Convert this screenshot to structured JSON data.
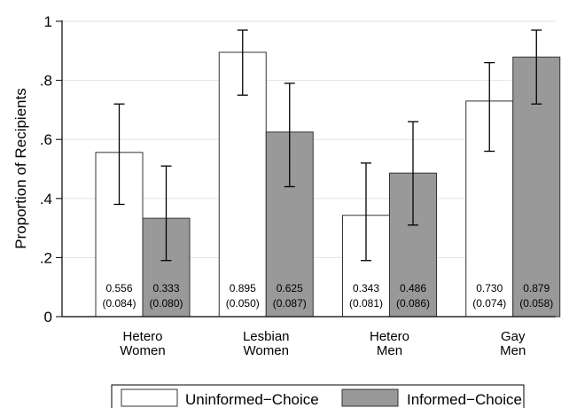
{
  "chart_data": {
    "type": "bar",
    "title": "",
    "xlabel": "",
    "ylabel": "Proportion of Recipients",
    "ylim": [
      0,
      1
    ],
    "yticks": [
      {
        "value": 0,
        "label": "0"
      },
      {
        "value": 0.2,
        "label": ".2"
      },
      {
        "value": 0.4,
        "label": ".4"
      },
      {
        "value": 0.6,
        "label": ".6"
      },
      {
        "value": 0.8,
        "label": ".8"
      },
      {
        "value": 1,
        "label": "1"
      }
    ],
    "grid": true,
    "legend_position": "bottom",
    "categories": [
      [
        "Hetero",
        "Women"
      ],
      [
        "Lesbian",
        "Women"
      ],
      [
        "Hetero",
        "Men"
      ],
      [
        "Gay",
        "Men"
      ]
    ],
    "series": [
      {
        "name": "Uninformed−Choice",
        "color": "#ffffff",
        "values": [
          0.556,
          0.895,
          0.343,
          0.73
        ],
        "ci_low": [
          0.38,
          0.75,
          0.19,
          0.56
        ],
        "ci_high": [
          0.72,
          0.97,
          0.52,
          0.86
        ],
        "value_labels": [
          "0.556",
          "0.895",
          "0.343",
          "0.730"
        ],
        "se_labels": [
          "(0.084)",
          "(0.050)",
          "(0.081)",
          "(0.074)"
        ]
      },
      {
        "name": "Informed−Choice",
        "color": "#999999",
        "values": [
          0.333,
          0.625,
          0.486,
          0.879
        ],
        "ci_low": [
          0.19,
          0.44,
          0.31,
          0.72
        ],
        "ci_high": [
          0.51,
          0.79,
          0.66,
          0.97
        ],
        "value_labels": [
          "0.333",
          "0.625",
          "0.486",
          "0.879"
        ],
        "se_labels": [
          "(0.080)",
          "(0.087)",
          "(0.086)",
          "(0.058)"
        ]
      }
    ]
  }
}
